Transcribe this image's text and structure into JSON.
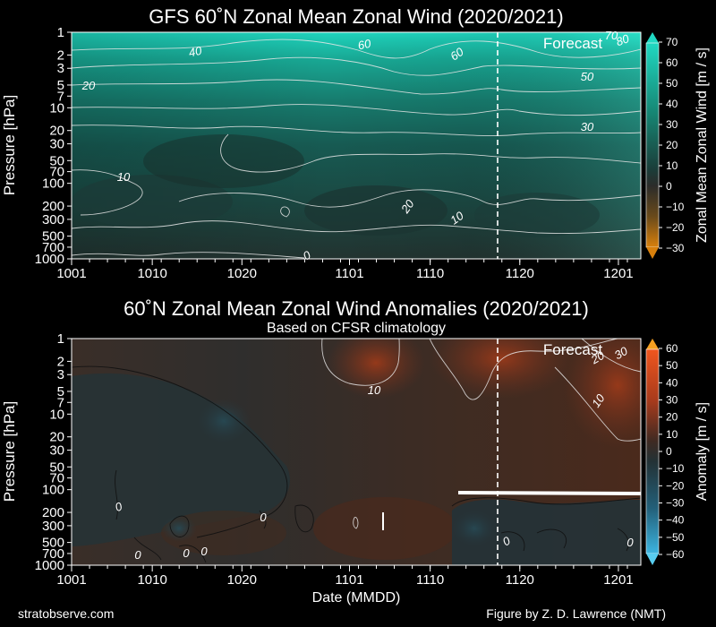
{
  "chart_data": [
    {
      "type": "heatmap",
      "title": "GFS 60˚N Zonal Mean Zonal Wind (2020/2021)",
      "ylabel": "Pressure [hPa]",
      "xlabel": "",
      "x_ticks": [
        "1001",
        "1010",
        "1020",
        "1101",
        "1110",
        "1120",
        "1201"
      ],
      "y_ticks": [
        "1",
        "2",
        "3",
        "5",
        "7",
        "10",
        "20",
        "30",
        "50",
        "70",
        "100",
        "200",
        "300",
        "500",
        "700",
        "1000"
      ],
      "forecast_label": "Forecast",
      "forecast_start": "1118",
      "colorbar_label": "Zonal Mean Zonal Wind [m / s]",
      "colorbar_ticks": [
        "70",
        "60",
        "50",
        "40",
        "30",
        "20",
        "10",
        "0",
        "−10",
        "−20",
        "−30"
      ],
      "colorbar_range": [
        -30,
        70
      ],
      "contour_labels": [
        "40",
        "60",
        "60",
        "70",
        "80",
        "20",
        "50",
        "30",
        "10",
        "20",
        "10",
        "0"
      ]
    },
    {
      "type": "heatmap",
      "title": "60˚N Zonal Mean Zonal Wind Anomalies (2020/2021)",
      "subtitle": "Based on CFSR climatology",
      "ylabel": "Pressure [hPa]",
      "xlabel": "Date (MMDD)",
      "x_ticks": [
        "1001",
        "1010",
        "1020",
        "1101",
        "1110",
        "1120",
        "1201"
      ],
      "y_ticks": [
        "1",
        "2",
        "3",
        "5",
        "7",
        "10",
        "20",
        "30",
        "50",
        "70",
        "100",
        "200",
        "300",
        "500",
        "700",
        "1000"
      ],
      "forecast_label": "Forecast",
      "forecast_start": "1118",
      "colorbar_label": "Anomaly [m / s]",
      "colorbar_ticks": [
        "60",
        "50",
        "40",
        "30",
        "20",
        "10",
        "0",
        "−10",
        "−20",
        "−30",
        "−40",
        "−50",
        "−60"
      ],
      "colorbar_range": [
        -60,
        60
      ],
      "contour_labels": [
        "10",
        "20",
        "30",
        "10",
        "0",
        "0",
        "0",
        "0",
        "0",
        "0",
        "0"
      ]
    }
  ],
  "footer": {
    "left": "stratobserve.com",
    "right": "Figure by Z. D. Lawrence (NMT)"
  }
}
